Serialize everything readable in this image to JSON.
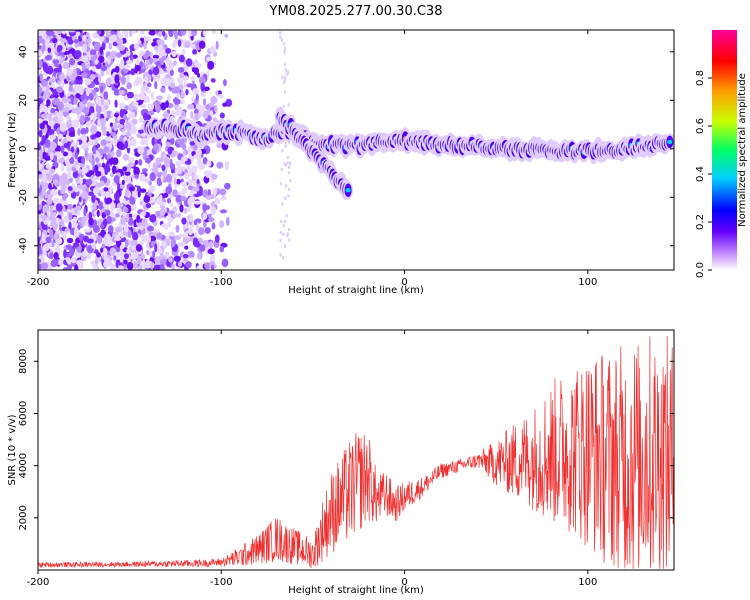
{
  "title": "YM08.2025.277.00.30.C38",
  "chart_data": [
    {
      "type": "heatmap",
      "name": "spectrogram",
      "xlabel": "Height of straight line (km)",
      "ylabel": "Frequency (Hz)",
      "xlim": [
        -200,
        147
      ],
      "ylim": [
        -50,
        49
      ],
      "xticks": [
        -200,
        -100,
        0,
        100
      ],
      "xtick_labels": [
        "-200",
        "-100",
        "0",
        "100"
      ],
      "yticks": [
        -40,
        -20,
        0,
        20,
        40
      ],
      "ytick_labels": [
        "-40",
        "-20",
        "0",
        "20",
        "40"
      ],
      "ridge": [
        {
          "x": -140,
          "y": 9
        },
        {
          "x": -120,
          "y": 8
        },
        {
          "x": -110,
          "y": 5
        },
        {
          "x": -100,
          "y": 7
        },
        {
          "x": -85,
          "y": 6
        },
        {
          "x": -75,
          "y": 4
        },
        {
          "x": -65,
          "y": 8
        },
        {
          "x": -50,
          "y": 3
        },
        {
          "x": -30,
          "y": 1
        },
        {
          "x": -10,
          "y": 3
        },
        {
          "x": 0,
          "y": 3
        },
        {
          "x": 20,
          "y": 2
        },
        {
          "x": 40,
          "y": 1
        },
        {
          "x": 60,
          "y": 0
        },
        {
          "x": 80,
          "y": -1
        },
        {
          "x": 100,
          "y": -1
        },
        {
          "x": 120,
          "y": 0
        },
        {
          "x": 145,
          "y": 2
        }
      ],
      "branch": [
        {
          "x": -68,
          "y": 14
        },
        {
          "x": -58,
          "y": 5
        },
        {
          "x": -48,
          "y": -3
        },
        {
          "x": -40,
          "y": -10
        },
        {
          "x": -30,
          "y": -17
        }
      ],
      "colorbar": {
        "label": "Normalized spectral amplitude",
        "range": [
          0,
          1
        ],
        "ticks": [
          0,
          0.2,
          0.4,
          0.6,
          0.8
        ],
        "tick_labels": [
          "0.0",
          "0.2",
          "0.4",
          "0.6",
          "0.8"
        ],
        "colors": [
          "#ffffff",
          "#cc99ff",
          "#6600ff",
          "#0000ff",
          "#00ccff",
          "#00ff66",
          "#ccff00",
          "#ff9900",
          "#ff0000",
          "#ff0099"
        ]
      }
    },
    {
      "type": "line",
      "name": "snr",
      "xlabel": "Height of straight line (km)",
      "ylabel": "SNR (10 * v/v)",
      "xlim": [
        -200,
        147
      ],
      "ylim": [
        0,
        9200
      ],
      "xticks": [
        -200,
        -100,
        0,
        100
      ],
      "xtick_labels": [
        "-200",
        "-100",
        "0",
        "100"
      ],
      "yticks": [
        2000,
        4000,
        6000,
        8000
      ],
      "ytick_labels": [
        "2000",
        "4000",
        "6000",
        "8000"
      ],
      "color": "#f03030",
      "series": [
        {
          "name": "SNR",
          "x": [
            -200,
            -150,
            -110,
            -100,
            -90,
            -80,
            -70,
            -60,
            -50,
            -45,
            -40,
            -35,
            -30,
            -25,
            -20,
            -15,
            -10,
            -5,
            0,
            10,
            20,
            30,
            40,
            50,
            60,
            70,
            80,
            90,
            100,
            110,
            120,
            130,
            140,
            147
          ],
          "y": [
            200,
            220,
            260,
            300,
            500,
            800,
            1200,
            900,
            600,
            1500,
            2200,
            2600,
            3000,
            3400,
            3600,
            2700,
            2900,
            2500,
            2800,
            3200,
            3800,
            4000,
            4200,
            4100,
            4200,
            4300,
            4500,
            4600,
            4600,
            4300,
            4200,
            4400,
            4300,
            4100
          ],
          "spread": [
            100,
            100,
            150,
            150,
            400,
            600,
            900,
            700,
            600,
            1200,
            1600,
            1800,
            2000,
            2000,
            1800,
            1000,
            900,
            700,
            600,
            400,
            300,
            250,
            300,
            900,
            1500,
            2000,
            2800,
            3200,
            3800,
            4200,
            4500,
            4800,
            4800,
            4800
          ]
        }
      ]
    }
  ]
}
